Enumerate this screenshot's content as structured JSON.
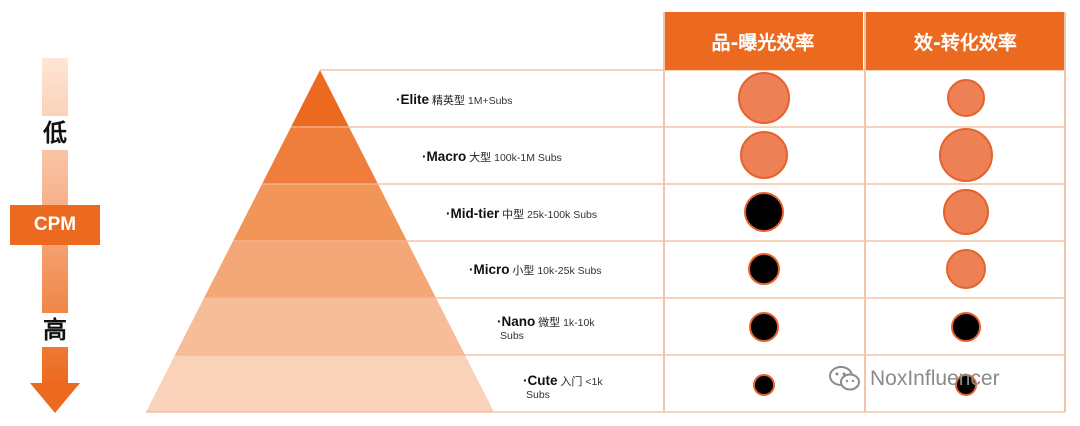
{
  "cpm": {
    "low": "低",
    "label": "CPM",
    "high": "高"
  },
  "columns": [
    {
      "label": "品-曝光效率"
    },
    {
      "label": "效-转化效率"
    }
  ],
  "tiers": [
    {
      "name": "·Elite",
      "cn": "精英型",
      "range": "1M+Subs",
      "col1": "orange",
      "col2": "orange"
    },
    {
      "name": "·Macro",
      "cn": "大型",
      "range": "100k-1M Subs",
      "col1": "orange",
      "col2": "orange"
    },
    {
      "name": "·Mid-tier",
      "cn": "中型",
      "range": "25k-100k Subs",
      "col1": "black",
      "col2": "orange"
    },
    {
      "name": "·Micro",
      "cn": "小型",
      "range": "10k-25k Subs",
      "col1": "black",
      "col2": "orange"
    },
    {
      "name": "·Nano",
      "cn": "微型",
      "range": "1k-10k",
      "range2": "Subs",
      "col1": "black",
      "col2": "black"
    },
    {
      "name": "·Cute",
      "cn": "入门",
      "range": "<1k",
      "range2": "Subs",
      "col1": "black",
      "col2": "black"
    }
  ],
  "colors": {
    "accent": "#ec6a1f",
    "tier_fills": [
      "#ec6a1f",
      "#ef7d3b",
      "#f29559",
      "#f4a878",
      "#f7bc98",
      "#fad2b9"
    ],
    "circle_orange": "#ee8056",
    "circle_black": "#000000"
  },
  "watermark": {
    "text": "NoxInfluencer",
    "icon": "wechat-icon"
  }
}
